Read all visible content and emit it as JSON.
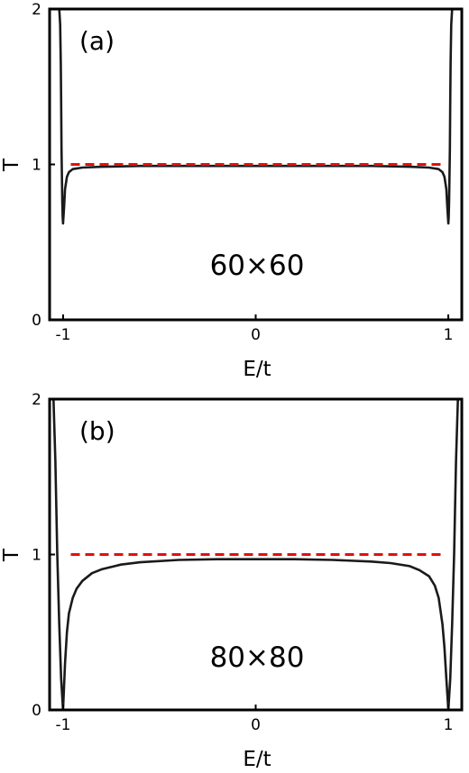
{
  "colors": {
    "frame": "#000000",
    "curve": "#1a1a1a",
    "reference": "#e01010"
  },
  "chart_data": [
    {
      "type": "line",
      "panel_label": "(a)",
      "size_label": "60×60",
      "xlabel": "E/t",
      "ylabel": "T",
      "xlim": [
        -1.07,
        1.07
      ],
      "ylim": [
        0,
        2
      ],
      "xticks": [
        -1,
        0,
        1
      ],
      "xtick_labels": [
        "-1",
        "0",
        "1"
      ],
      "yticks": [
        0,
        1,
        2
      ],
      "ytick_labels": [
        "0",
        "1",
        "2"
      ],
      "grid": false,
      "series": [
        {
          "style": "solid",
          "color": "#1a1a1a",
          "x": [
            -1.02,
            -1.015,
            -1.012,
            -1.01,
            -1.008,
            -1.006,
            -1.004,
            -1.002,
            -1.0,
            -0.995,
            -0.99,
            -0.98,
            -0.97,
            -0.95,
            -0.9,
            -0.8,
            -0.6,
            -0.4,
            -0.2,
            0.0,
            0.2,
            0.4,
            0.6,
            0.8,
            0.9,
            0.95,
            0.97,
            0.98,
            0.99,
            0.995,
            1.0,
            1.002,
            1.004,
            1.006,
            1.008,
            1.01,
            1.012,
            1.015,
            1.02
          ],
          "y": [
            2.0,
            1.9,
            1.65,
            1.4,
            1.1,
            0.9,
            0.75,
            0.66,
            0.62,
            0.72,
            0.84,
            0.92,
            0.95,
            0.97,
            0.98,
            0.985,
            0.99,
            0.99,
            0.99,
            0.99,
            0.99,
            0.99,
            0.99,
            0.985,
            0.98,
            0.97,
            0.95,
            0.92,
            0.84,
            0.72,
            0.62,
            0.66,
            0.75,
            0.9,
            1.1,
            1.4,
            1.65,
            1.9,
            2.0
          ]
        },
        {
          "style": "dashed",
          "color": "#e01010",
          "x": [
            -0.96,
            0.98
          ],
          "y": [
            1,
            1
          ]
        }
      ]
    },
    {
      "type": "line",
      "panel_label": "(b)",
      "size_label": "80×80",
      "xlabel": "E/t",
      "ylabel": "T",
      "xlim": [
        -1.07,
        1.07
      ],
      "ylim": [
        0,
        2
      ],
      "xticks": [
        -1,
        0,
        1
      ],
      "xtick_labels": [
        "-1",
        "0",
        "1"
      ],
      "yticks": [
        0,
        1,
        2
      ],
      "ytick_labels": [
        "0",
        "1",
        "2"
      ],
      "grid": false,
      "series": [
        {
          "style": "solid",
          "color": "#1a1a1a",
          "x": [
            -1.05,
            -1.04,
            -1.03,
            -1.02,
            -1.01,
            -1.0,
            -0.99,
            -0.98,
            -0.97,
            -0.95,
            -0.93,
            -0.9,
            -0.85,
            -0.8,
            -0.7,
            -0.6,
            -0.4,
            -0.2,
            0.0,
            0.2,
            0.4,
            0.6,
            0.7,
            0.8,
            0.85,
            0.9,
            0.93,
            0.95,
            0.97,
            0.98,
            0.99,
            1.0,
            1.01,
            1.02,
            1.03,
            1.04,
            1.05
          ],
          "y": [
            2.0,
            1.6,
            1.0,
            0.55,
            0.2,
            0.0,
            0.3,
            0.5,
            0.62,
            0.72,
            0.78,
            0.83,
            0.88,
            0.905,
            0.935,
            0.95,
            0.965,
            0.97,
            0.97,
            0.97,
            0.965,
            0.955,
            0.945,
            0.925,
            0.9,
            0.86,
            0.8,
            0.72,
            0.55,
            0.4,
            0.2,
            0.0,
            0.2,
            0.55,
            1.0,
            1.6,
            2.0
          ]
        },
        {
          "style": "dashed",
          "color": "#e01010",
          "x": [
            -0.96,
            0.98
          ],
          "y": [
            1,
            1
          ]
        }
      ]
    }
  ]
}
